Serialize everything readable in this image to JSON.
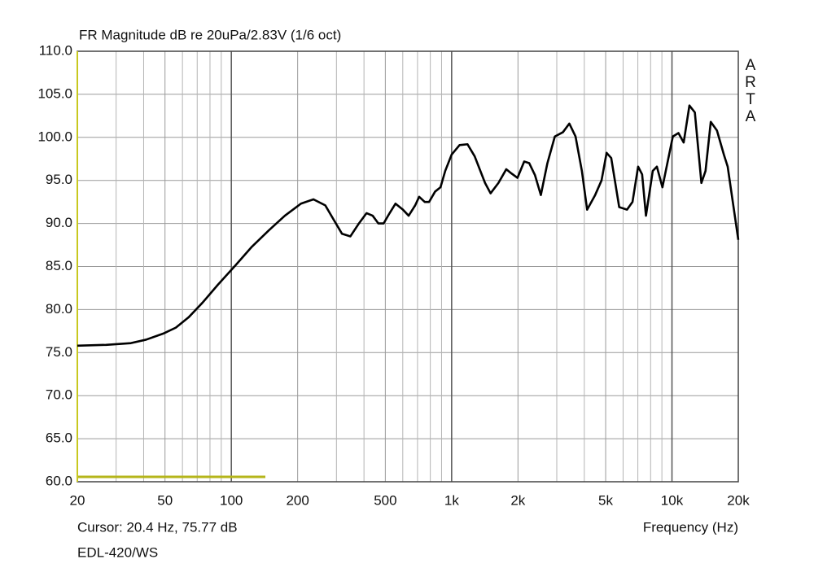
{
  "chart_data": {
    "type": "line",
    "title": "FR Magnitude dB re 20uPa/2.83V (1/6 oct)",
    "watermark": "ARTA",
    "x_label": "Frequency (Hz)",
    "cursor_text": "Cursor: 20.4 Hz, 75.77 dB",
    "subtitle": "EDL-420/WS",
    "log_x": true,
    "grid": true,
    "color": "#000000",
    "x": [
      20,
      27,
      35,
      41,
      49,
      56,
      64,
      74,
      87,
      105,
      124,
      148,
      175,
      207,
      236,
      267,
      292,
      318,
      347,
      377,
      411,
      438,
      465,
      491,
      523,
      556,
      601,
      638,
      683,
      712,
      755,
      790,
      841,
      890,
      935,
      1000,
      1086,
      1180,
      1272,
      1418,
      1502,
      1630,
      1770,
      1870,
      1990,
      2135,
      2250,
      2390,
      2540,
      2720,
      2940,
      3200,
      3420,
      3650,
      3900,
      4120,
      4480,
      4790,
      5050,
      5300,
      5760,
      6250,
      6620,
      7020,
      7320,
      7620,
      8180,
      8540,
      9050,
      10090,
      10700,
      11300,
      12000,
      12700,
      13600,
      14200,
      15000,
      16000,
      17200,
      17900,
      20000
    ],
    "values": [
      75.8,
      75.9,
      76.1,
      76.5,
      77.2,
      77.9,
      79.1,
      80.8,
      82.9,
      85.2,
      87.3,
      89.2,
      90.9,
      92.3,
      92.8,
      92.1,
      90.4,
      88.8,
      88.5,
      89.9,
      91.2,
      90.9,
      90.0,
      90.0,
      91.2,
      92.3,
      91.6,
      90.9,
      92.1,
      93.1,
      92.5,
      92.5,
      93.7,
      94.2,
      96.1,
      98.0,
      99.1,
      99.2,
      97.8,
      94.7,
      93.5,
      94.7,
      96.3,
      95.8,
      95.3,
      97.2,
      97.0,
      95.6,
      93.3,
      97.0,
      100.1,
      100.6,
      101.6,
      100.1,
      96.1,
      91.6,
      93.3,
      95.0,
      98.2,
      97.6,
      91.9,
      91.6,
      92.5,
      96.6,
      95.7,
      90.9,
      96.1,
      96.6,
      94.2,
      100.1,
      100.5,
      99.4,
      103.7,
      102.9,
      94.7,
      96.1,
      101.8,
      100.8,
      98.0,
      96.6,
      88.1
    ],
    "xlim": [
      20,
      20000
    ],
    "ylim": [
      60,
      110
    ],
    "xticks": [
      20,
      50,
      100,
      200,
      500,
      {
        "value": 1000,
        "label": "1k"
      },
      {
        "value": 2000,
        "label": "2k"
      },
      {
        "value": 5000,
        "label": "5k"
      },
      {
        "value": 10000,
        "label": "10k"
      },
      {
        "value": 20000,
        "label": "20k"
      }
    ],
    "xminorticks": [
      30,
      40,
      60,
      70,
      80,
      90,
      300,
      400,
      600,
      700,
      800,
      900,
      3000,
      4000,
      6000,
      7000,
      8000,
      9000
    ],
    "yticks": [
      {
        "value": 60,
        "label": "60.0"
      },
      {
        "value": 65,
        "label": "65.0"
      },
      {
        "value": 70,
        "label": "70.0"
      },
      {
        "value": 75,
        "label": "75.0"
      },
      {
        "value": 80,
        "label": "80.0"
      },
      {
        "value": 85,
        "label": "85.0"
      },
      {
        "value": 90,
        "label": "90.0"
      },
      {
        "value": 95,
        "label": "95.0"
      },
      {
        "value": 100,
        "label": "100.0"
      },
      {
        "value": 105,
        "label": "105.0"
      },
      {
        "value": 110,
        "label": "110.0"
      }
    ]
  }
}
